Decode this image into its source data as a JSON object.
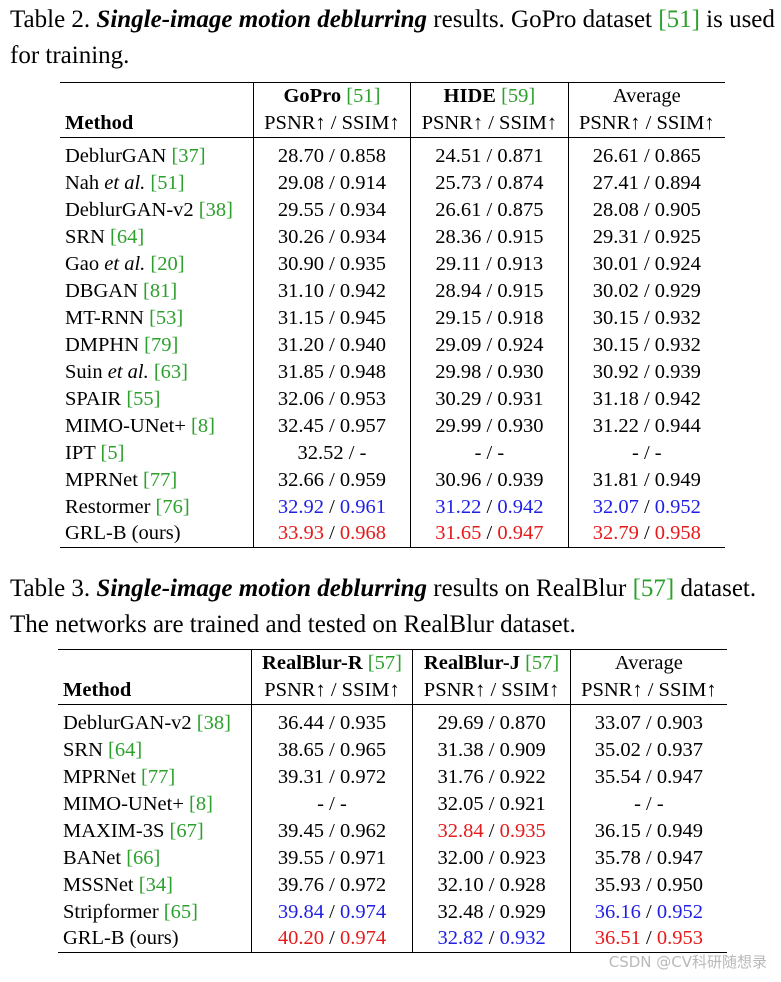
{
  "table2": {
    "caption": {
      "label": "Table 2.",
      "emph": "Single-image motion deblurring",
      "rest1": " results. GoPro dataset ",
      "cite": "[51]",
      "rest2": " is used for training."
    },
    "header": {
      "method": "Method",
      "groups": [
        {
          "name": "GoPro",
          "cite": "[51]",
          "bold": true,
          "sub": "PSNR↑ / SSIM↑"
        },
        {
          "name": "HIDE",
          "cite": "[59]",
          "bold": true,
          "sub": "PSNR↑ / SSIM↑"
        },
        {
          "name": "Average",
          "cite": "",
          "bold": false,
          "sub": "PSNR↑ / SSIM↑"
        }
      ]
    },
    "rows": [
      {
        "pre": "DeblurGAN ",
        "em": "",
        "post": "",
        "cite": "[37]",
        "cells": [
          [
            "28.70",
            "0.858",
            ""
          ],
          [
            "24.51",
            "0.871",
            ""
          ],
          [
            "26.61",
            "0.865",
            ""
          ]
        ]
      },
      {
        "pre": "Nah ",
        "em": "et al.",
        "post": "",
        "cite": "[51]",
        "cells": [
          [
            "29.08",
            "0.914",
            ""
          ],
          [
            "25.73",
            "0.874",
            ""
          ],
          [
            "27.41",
            "0.894",
            ""
          ]
        ]
      },
      {
        "pre": "DeblurGAN-v2 ",
        "em": "",
        "post": "",
        "cite": "[38]",
        "cells": [
          [
            "29.55",
            "0.934",
            ""
          ],
          [
            "26.61",
            "0.875",
            ""
          ],
          [
            "28.08",
            "0.905",
            ""
          ]
        ]
      },
      {
        "pre": "SRN ",
        "em": "",
        "post": "",
        "cite": "[64]",
        "cells": [
          [
            "30.26",
            "0.934",
            ""
          ],
          [
            "28.36",
            "0.915",
            ""
          ],
          [
            "29.31",
            "0.925",
            ""
          ]
        ]
      },
      {
        "pre": "Gao ",
        "em": "et al.",
        "post": "",
        "cite": "[20]",
        "cells": [
          [
            "30.90",
            "0.935",
            ""
          ],
          [
            "29.11",
            "0.913",
            ""
          ],
          [
            "30.01",
            "0.924",
            ""
          ]
        ]
      },
      {
        "pre": "DBGAN ",
        "em": "",
        "post": "",
        "cite": "[81]",
        "cells": [
          [
            "31.10",
            "0.942",
            ""
          ],
          [
            "28.94",
            "0.915",
            ""
          ],
          [
            "30.02",
            "0.929",
            ""
          ]
        ]
      },
      {
        "pre": "MT-RNN ",
        "em": "",
        "post": "",
        "cite": "[53]",
        "cells": [
          [
            "31.15",
            "0.945",
            ""
          ],
          [
            "29.15",
            "0.918",
            ""
          ],
          [
            "30.15",
            "0.932",
            ""
          ]
        ]
      },
      {
        "pre": "DMPHN ",
        "em": "",
        "post": "",
        "cite": "[79]",
        "cells": [
          [
            "31.20",
            "0.940",
            ""
          ],
          [
            "29.09",
            "0.924",
            ""
          ],
          [
            "30.15",
            "0.932",
            ""
          ]
        ]
      },
      {
        "pre": "Suin ",
        "em": "et al.",
        "post": "",
        "cite": "[63]",
        "cells": [
          [
            "31.85",
            "0.948",
            ""
          ],
          [
            "29.98",
            "0.930",
            ""
          ],
          [
            "30.92",
            "0.939",
            ""
          ]
        ]
      },
      {
        "pre": "SPAIR ",
        "em": "",
        "post": "",
        "cite": "[55]",
        "cells": [
          [
            "32.06",
            "0.953",
            ""
          ],
          [
            "30.29",
            "0.931",
            ""
          ],
          [
            "31.18",
            "0.942",
            ""
          ]
        ]
      },
      {
        "pre": "MIMO-UNet+ ",
        "em": "",
        "post": "",
        "cite": "[8]",
        "cells": [
          [
            "32.45",
            "0.957",
            ""
          ],
          [
            "29.99",
            "0.930",
            ""
          ],
          [
            "31.22",
            "0.944",
            ""
          ]
        ]
      },
      {
        "pre": "IPT ",
        "em": "",
        "post": "",
        "cite": "[5]",
        "cells": [
          [
            "32.52",
            "-",
            ""
          ],
          [
            "-",
            "-",
            ""
          ],
          [
            "-",
            "-",
            ""
          ]
        ]
      },
      {
        "pre": "MPRNet ",
        "em": "",
        "post": "",
        "cite": "[77]",
        "cells": [
          [
            "32.66",
            "0.959",
            ""
          ],
          [
            "30.96",
            "0.939",
            ""
          ],
          [
            "31.81",
            "0.949",
            ""
          ]
        ]
      },
      {
        "pre": "Restormer ",
        "em": "",
        "post": "",
        "cite": "[76]",
        "cells": [
          [
            "32.92",
            "0.961",
            "blue"
          ],
          [
            "31.22",
            "0.942",
            "blue"
          ],
          [
            "32.07",
            "0.952",
            "blue"
          ]
        ]
      },
      {
        "pre": "GRL-B (ours)",
        "em": "",
        "post": "",
        "cite": "",
        "cells": [
          [
            "33.93",
            "0.968",
            "red"
          ],
          [
            "31.65",
            "0.947",
            "red"
          ],
          [
            "32.79",
            "0.958",
            "red"
          ]
        ]
      }
    ]
  },
  "table3": {
    "caption": {
      "label": "Table 3.",
      "emph": "Single-image motion deblurring",
      "rest1": " results on RealBlur ",
      "cite": "[57]",
      "rest2": " dataset. The networks are trained and tested on RealBlur dataset."
    },
    "header": {
      "method": "Method",
      "groups": [
        {
          "name": "RealBlur-R",
          "cite": "[57]",
          "bold": true,
          "sub": "PSNR↑ / SSIM↑"
        },
        {
          "name": "RealBlur-J",
          "cite": "[57]",
          "bold": true,
          "sub": "PSNR↑ / SSIM↑"
        },
        {
          "name": "Average",
          "cite": "",
          "bold": false,
          "sub": "PSNR↑ / SSIM↑"
        }
      ]
    },
    "rows": [
      {
        "pre": "DeblurGAN-v2 ",
        "em": "",
        "post": "",
        "cite": "[38]",
        "cells": [
          [
            "36.44",
            "0.935",
            ""
          ],
          [
            "29.69",
            "0.870",
            ""
          ],
          [
            "33.07",
            "0.903",
            ""
          ]
        ]
      },
      {
        "pre": "SRN ",
        "em": "",
        "post": "",
        "cite": "[64]",
        "cells": [
          [
            "38.65",
            "0.965",
            ""
          ],
          [
            "31.38",
            "0.909",
            ""
          ],
          [
            "35.02",
            "0.937",
            ""
          ]
        ]
      },
      {
        "pre": "MPRNet ",
        "em": "",
        "post": "",
        "cite": "[77]",
        "cells": [
          [
            "39.31",
            "0.972",
            ""
          ],
          [
            "31.76",
            "0.922",
            ""
          ],
          [
            "35.54",
            "0.947",
            ""
          ]
        ]
      },
      {
        "pre": "MIMO-UNet+ ",
        "em": "",
        "post": "",
        "cite": "[8]",
        "cells": [
          [
            "-",
            "-",
            ""
          ],
          [
            "32.05",
            "0.921",
            ""
          ],
          [
            "-",
            "-",
            ""
          ]
        ]
      },
      {
        "pre": "MAXIM-3S ",
        "em": "",
        "post": "",
        "cite": "[67]",
        "cells": [
          [
            "39.45",
            "0.962",
            ""
          ],
          [
            "32.84",
            "0.935",
            "red"
          ],
          [
            "36.15",
            "0.949",
            ""
          ]
        ]
      },
      {
        "pre": "BANet ",
        "em": "",
        "post": "",
        "cite": "[66]",
        "cells": [
          [
            "39.55",
            "0.971",
            ""
          ],
          [
            "32.00",
            "0.923",
            ""
          ],
          [
            "35.78",
            "0.947",
            ""
          ]
        ]
      },
      {
        "pre": "MSSNet ",
        "em": "",
        "post": "",
        "cite": "[34]",
        "cells": [
          [
            "39.76",
            "0.972",
            ""
          ],
          [
            "32.10",
            "0.928",
            ""
          ],
          [
            "35.93",
            "0.950",
            ""
          ]
        ]
      },
      {
        "pre": "Stripformer ",
        "em": "",
        "post": "",
        "cite": "[65]",
        "cells": [
          [
            "39.84",
            "0.974",
            "blue"
          ],
          [
            "32.48",
            "0.929",
            ""
          ],
          [
            "36.16",
            "0.952",
            "blue"
          ]
        ]
      },
      {
        "pre": "GRL-B (ours)",
        "em": "",
        "post": "",
        "cite": "",
        "cells": [
          [
            "40.20",
            "0.974",
            "red"
          ],
          [
            "32.82",
            "0.932",
            "blue"
          ],
          [
            "36.51",
            "0.953",
            "red"
          ]
        ]
      }
    ]
  },
  "watermark": "CSDN @CV科研随想录",
  "colors": {
    "best": "#e61a1a",
    "second": "#1f1fe6",
    "citation": "#2ca02c"
  }
}
